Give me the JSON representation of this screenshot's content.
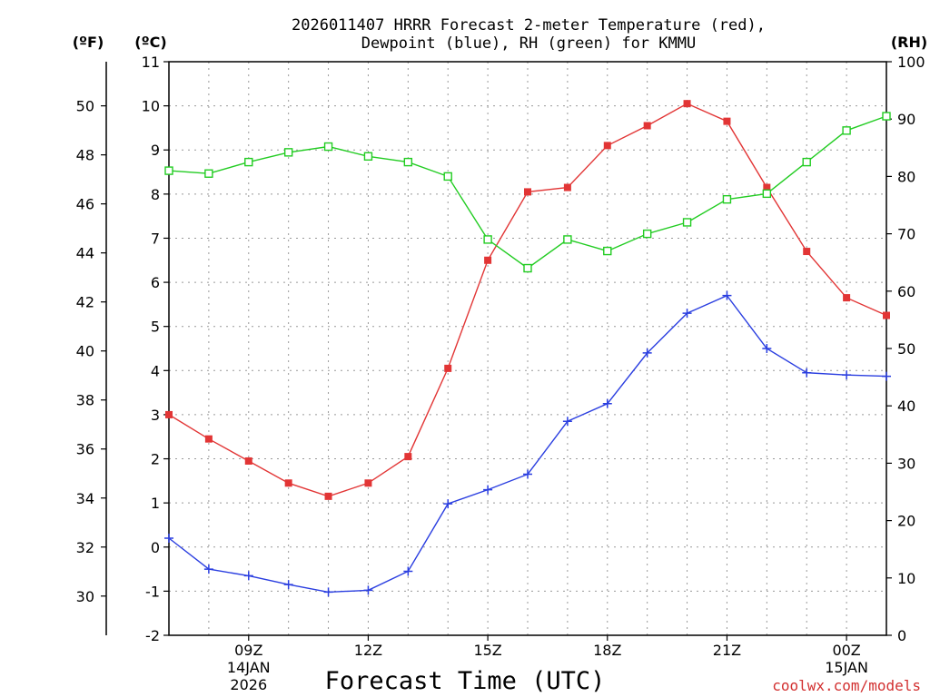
{
  "chart_data": {
    "type": "line",
    "title_line1": "2026011407 HRRR Forecast 2-meter Temperature (red),",
    "title_line2": "Dewpoint (blue), RH (green) for KMMU",
    "xlabel": "Forecast Time (UTC)",
    "credit": "coolwx.com/models",
    "unit_labels": {
      "fahrenheit": "(ºF)",
      "celsius": "(ºC)",
      "rh": "(RH)"
    },
    "x_hours": [
      7,
      8,
      9,
      10,
      11,
      12,
      13,
      14,
      15,
      16,
      17,
      18,
      19,
      20,
      21,
      22,
      23,
      24,
      25
    ],
    "xlim": [
      7,
      25
    ],
    "x_ticks": [
      {
        "hour": 9,
        "label": "09Z",
        "date": "14JAN",
        "year": "2026"
      },
      {
        "hour": 12,
        "label": "12Z"
      },
      {
        "hour": 15,
        "label": "15Z"
      },
      {
        "hour": 18,
        "label": "18Z"
      },
      {
        "hour": 21,
        "label": "21Z"
      },
      {
        "hour": 24,
        "label": "00Z",
        "date": "15JAN"
      }
    ],
    "celsius_axis": {
      "min": -2,
      "max": 11,
      "ticks": [
        "-2",
        "-1",
        "0",
        "1",
        "2",
        "3",
        "4",
        "5",
        "6",
        "7",
        "8",
        "9",
        "10",
        "11"
      ]
    },
    "fahrenheit_axis": {
      "ticks": [
        "30",
        "32",
        "34",
        "36",
        "38",
        "40",
        "42",
        "44",
        "46",
        "48",
        "50"
      ]
    },
    "rh_axis": {
      "min": 0,
      "max": 100,
      "ticks": [
        "0",
        "10",
        "20",
        "30",
        "40",
        "50",
        "60",
        "70",
        "80",
        "90",
        "100"
      ]
    },
    "series": [
      {
        "name": "Temperature",
        "color": "#e23535",
        "axis": "celsius",
        "marker": "filled-square",
        "values": [
          3.0,
          2.45,
          1.95,
          1.45,
          1.15,
          1.45,
          2.05,
          4.05,
          6.5,
          8.05,
          8.15,
          9.1,
          9.55,
          10.05,
          9.65,
          8.15,
          6.7,
          5.65,
          5.25
        ]
      },
      {
        "name": "Dewpoint",
        "color": "#2a3ee0",
        "axis": "celsius",
        "marker": "plus",
        "values": [
          0.2,
          -0.5,
          -0.65,
          -0.85,
          -1.02,
          -0.98,
          -0.55,
          0.98,
          1.3,
          1.65,
          2.85,
          3.25,
          4.4,
          5.3,
          5.7,
          4.5,
          3.95,
          3.9,
          3.87
        ]
      },
      {
        "name": "RH",
        "color": "#22cc22",
        "axis": "rh",
        "marker": "open-square",
        "values": [
          81,
          80.5,
          82.5,
          84.2,
          85.2,
          83.5,
          82.5,
          80,
          69,
          64,
          69,
          67,
          70,
          72,
          76,
          77,
          82.5,
          88,
          90.5
        ]
      }
    ]
  }
}
